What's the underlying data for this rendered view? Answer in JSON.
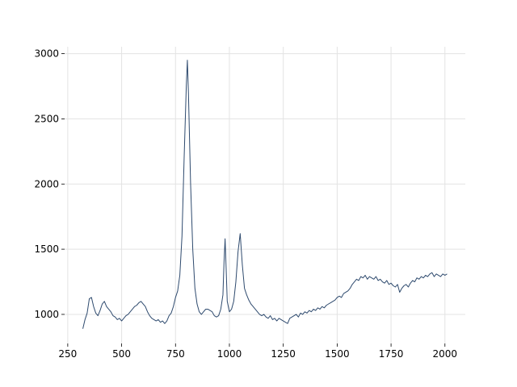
{
  "chart_data": {
    "type": "line",
    "x": [
      320,
      330,
      340,
      350,
      360,
      370,
      380,
      390,
      400,
      410,
      420,
      430,
      440,
      450,
      460,
      470,
      480,
      490,
      500,
      510,
      520,
      530,
      540,
      550,
      560,
      570,
      580,
      590,
      600,
      610,
      620,
      630,
      640,
      650,
      660,
      670,
      680,
      690,
      700,
      710,
      720,
      730,
      740,
      750,
      760,
      770,
      780,
      790,
      800,
      805,
      810,
      820,
      830,
      840,
      850,
      860,
      870,
      880,
      890,
      900,
      910,
      920,
      930,
      940,
      950,
      960,
      970,
      975,
      980,
      985,
      990,
      1000,
      1010,
      1020,
      1030,
      1040,
      1050,
      1060,
      1070,
      1080,
      1090,
      1100,
      1110,
      1120,
      1130,
      1140,
      1150,
      1160,
      1170,
      1180,
      1190,
      1200,
      1210,
      1220,
      1230,
      1240,
      1250,
      1260,
      1270,
      1280,
      1290,
      1300,
      1310,
      1320,
      1330,
      1340,
      1350,
      1360,
      1370,
      1380,
      1390,
      1400,
      1410,
      1420,
      1430,
      1440,
      1450,
      1460,
      1470,
      1480,
      1490,
      1500,
      1510,
      1520,
      1530,
      1540,
      1550,
      1560,
      1570,
      1580,
      1590,
      1600,
      1610,
      1620,
      1630,
      1640,
      1650,
      1660,
      1670,
      1680,
      1690,
      1700,
      1710,
      1720,
      1730,
      1740,
      1750,
      1760,
      1770,
      1780,
      1790,
      1800,
      1810,
      1820,
      1830,
      1840,
      1850,
      1860,
      1870,
      1880,
      1890,
      1900,
      1910,
      1920,
      1930,
      1940,
      1950,
      1960,
      1970,
      1980,
      1990,
      2000,
      2010
    ],
    "series": [
      {
        "color": "#2e4a6e",
        "values": [
          890,
          960,
          1010,
          1120,
          1130,
          1060,
          1010,
          990,
          1030,
          1080,
          1100,
          1060,
          1040,
          1020,
          990,
          980,
          960,
          970,
          950,
          970,
          990,
          1000,
          1020,
          1040,
          1060,
          1070,
          1090,
          1100,
          1080,
          1060,
          1020,
          990,
          970,
          960,
          950,
          960,
          940,
          950,
          930,
          950,
          990,
          1010,
          1060,
          1130,
          1180,
          1300,
          1600,
          2200,
          2750,
          2950,
          2700,
          2000,
          1500,
          1200,
          1080,
          1020,
          1000,
          1020,
          1040,
          1040,
          1030,
          1020,
          990,
          980,
          990,
          1040,
          1150,
          1400,
          1580,
          1350,
          1100,
          1020,
          1040,
          1100,
          1250,
          1480,
          1620,
          1380,
          1200,
          1150,
          1110,
          1080,
          1060,
          1040,
          1020,
          1000,
          990,
          1000,
          980,
          970,
          990,
          960,
          970,
          950,
          970,
          960,
          950,
          940,
          930,
          970,
          980,
          990,
          1000,
          980,
          1010,
          1000,
          1020,
          1010,
          1030,
          1020,
          1040,
          1030,
          1050,
          1040,
          1060,
          1050,
          1070,
          1080,
          1090,
          1100,
          1110,
          1130,
          1140,
          1130,
          1160,
          1170,
          1180,
          1200,
          1230,
          1250,
          1270,
          1260,
          1290,
          1280,
          1300,
          1270,
          1290,
          1280,
          1270,
          1290,
          1260,
          1270,
          1250,
          1240,
          1260,
          1230,
          1240,
          1220,
          1210,
          1230,
          1170,
          1200,
          1220,
          1230,
          1210,
          1240,
          1260,
          1250,
          1280,
          1270,
          1290,
          1280,
          1300,
          1290,
          1310,
          1320,
          1290,
          1310,
          1300,
          1290,
          1310,
          1300,
          1310
        ]
      }
    ],
    "xlim": [
      235.5,
      2094.5
    ],
    "ylim": [
      777,
      3053
    ],
    "xticks": [
      250,
      500,
      750,
      1000,
      1250,
      1500,
      1750,
      2000
    ],
    "yticks": [
      1000,
      1500,
      2000,
      2500,
      3000
    ],
    "grid": true
  }
}
